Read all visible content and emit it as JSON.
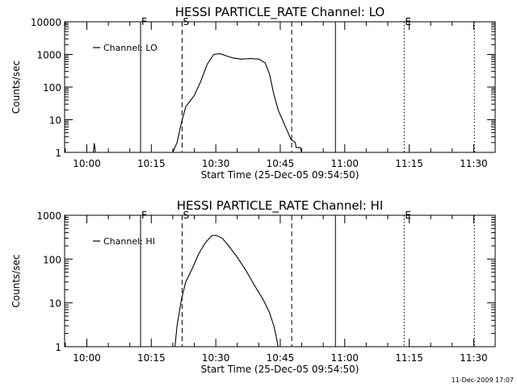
{
  "footer": {
    "timestamp": "11-Dec-2009 17:07"
  },
  "chart_data": [
    {
      "type": "line",
      "title": "HESSI PARTICLE_RATE Channel: LO",
      "xlabel": "Start Time (25-Dec-05 09:54:50)",
      "ylabel": "Counts/sec",
      "y_scale": "log",
      "xlim": [
        "09:54:50",
        "11:35:00"
      ],
      "ylim": [
        1,
        10000
      ],
      "x_ticks": [
        "10:00",
        "10:15",
        "10:30",
        "10:45",
        "11:00",
        "11:15",
        "11:30"
      ],
      "y_ticks": [
        "1",
        "10",
        "100",
        "1000",
        "10000"
      ],
      "grid": false,
      "legend": {
        "position": "top-left",
        "entries": [
          "Channel: LO"
        ]
      },
      "markers": [
        {
          "time": "10:12:30",
          "label": "F",
          "style": "solid"
        },
        {
          "time": "10:22:10",
          "label": "S",
          "style": "dashed"
        },
        {
          "time": "10:47:40",
          "label": "",
          "style": "dashed"
        },
        {
          "time": "10:57:50",
          "label": "",
          "style": "solid"
        },
        {
          "time": "11:13:50",
          "label": "E",
          "style": "dotted"
        },
        {
          "time": "11:30:10",
          "label": "",
          "style": "dotted"
        }
      ],
      "series": [
        {
          "name": "Channel: LO",
          "points": [
            [
              "10:01:30",
              1
            ],
            [
              "10:01:45",
              1.9
            ],
            [
              "10:02:00",
              1
            ],
            [
              "10:20:00",
              1
            ],
            [
              "10:21:00",
              2
            ],
            [
              "10:22:00",
              8
            ],
            [
              "10:23:00",
              25
            ],
            [
              "10:25:00",
              55
            ],
            [
              "10:26:30",
              150
            ],
            [
              "10:28:00",
              500
            ],
            [
              "10:29:30",
              1000
            ],
            [
              "10:31:00",
              1050
            ],
            [
              "10:32:30",
              900
            ],
            [
              "10:34:00",
              780
            ],
            [
              "10:36:00",
              720
            ],
            [
              "10:38:00",
              750
            ],
            [
              "10:40:00",
              720
            ],
            [
              "10:41:30",
              550
            ],
            [
              "10:42:30",
              250
            ],
            [
              "10:43:30",
              60
            ],
            [
              "10:44:30",
              20
            ],
            [
              "10:45:30",
              10
            ],
            [
              "10:46:30",
              5
            ],
            [
              "10:47:30",
              2.5
            ],
            [
              "10:48:30",
              2
            ],
            [
              "10:48:40",
              1.4
            ],
            [
              "10:49:40",
              1.4
            ],
            [
              "10:50:00",
              1
            ]
          ]
        }
      ]
    },
    {
      "type": "line",
      "title": "HESSI PARTICLE_RATE Channel: HI",
      "xlabel": "Start Time (25-Dec-05 09:54:50)",
      "ylabel": "Counts/sec",
      "y_scale": "log",
      "xlim": [
        "09:54:50",
        "11:35:00"
      ],
      "ylim": [
        1,
        1000
      ],
      "x_ticks": [
        "10:00",
        "10:15",
        "10:30",
        "10:45",
        "11:00",
        "11:15",
        "11:30"
      ],
      "y_ticks": [
        "1",
        "10",
        "100",
        "1000"
      ],
      "grid": false,
      "legend": {
        "position": "top-left",
        "entries": [
          "Channel: HI"
        ]
      },
      "markers": [
        {
          "time": "10:12:30",
          "label": "F",
          "style": "solid"
        },
        {
          "time": "10:22:10",
          "label": "S",
          "style": "dashed"
        },
        {
          "time": "10:47:40",
          "label": "",
          "style": "dashed"
        },
        {
          "time": "10:57:50",
          "label": "",
          "style": "solid"
        },
        {
          "time": "11:13:50",
          "label": "E",
          "style": "dotted"
        },
        {
          "time": "11:30:10",
          "label": "",
          "style": "dotted"
        }
      ],
      "series": [
        {
          "name": "Channel: HI",
          "points": [
            [
              "10:20:30",
              1
            ],
            [
              "10:21:00",
              3
            ],
            [
              "10:22:00",
              12
            ],
            [
              "10:23:00",
              30
            ],
            [
              "10:24:30",
              60
            ],
            [
              "10:26:00",
              130
            ],
            [
              "10:27:30",
              230
            ],
            [
              "10:29:00",
              340
            ],
            [
              "10:30:00",
              350
            ],
            [
              "10:31:30",
              300
            ],
            [
              "10:33:00",
              200
            ],
            [
              "10:35:00",
              110
            ],
            [
              "10:37:00",
              55
            ],
            [
              "10:39:00",
              25
            ],
            [
              "10:41:00",
              12
            ],
            [
              "10:42:30",
              6
            ],
            [
              "10:43:30",
              3
            ],
            [
              "10:44:00",
              1.8
            ],
            [
              "10:44:30",
              1
            ]
          ]
        }
      ]
    }
  ]
}
